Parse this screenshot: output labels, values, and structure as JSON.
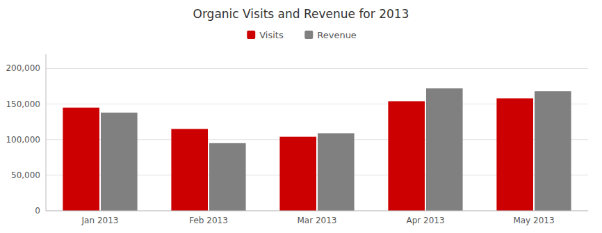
{
  "chart_data": {
    "type": "bar",
    "title": "Organic Visits and Revenue for 2013",
    "categories": [
      "Jan 2013",
      "Feb 2013",
      "Mar 2013",
      "Apr 2013",
      "May 2013"
    ],
    "series": [
      {
        "name": "Visits",
        "color": "#cc0000",
        "values": [
          145000,
          115000,
          104000,
          154000,
          158000
        ]
      },
      {
        "name": "Revenue",
        "color": "#808080",
        "values": [
          138000,
          95000,
          109000,
          172000,
          168000
        ]
      }
    ],
    "ylim": [
      0,
      220000
    ],
    "yticks": [
      0,
      {
        "value": 50000,
        "label": "50,000"
      },
      {
        "value": 100000,
        "label": "100,000"
      },
      {
        "value": 150000,
        "label": "150,000"
      },
      {
        "value": 200000,
        "label": "200,000"
      }
    ],
    "grid": true,
    "legend": "top"
  }
}
